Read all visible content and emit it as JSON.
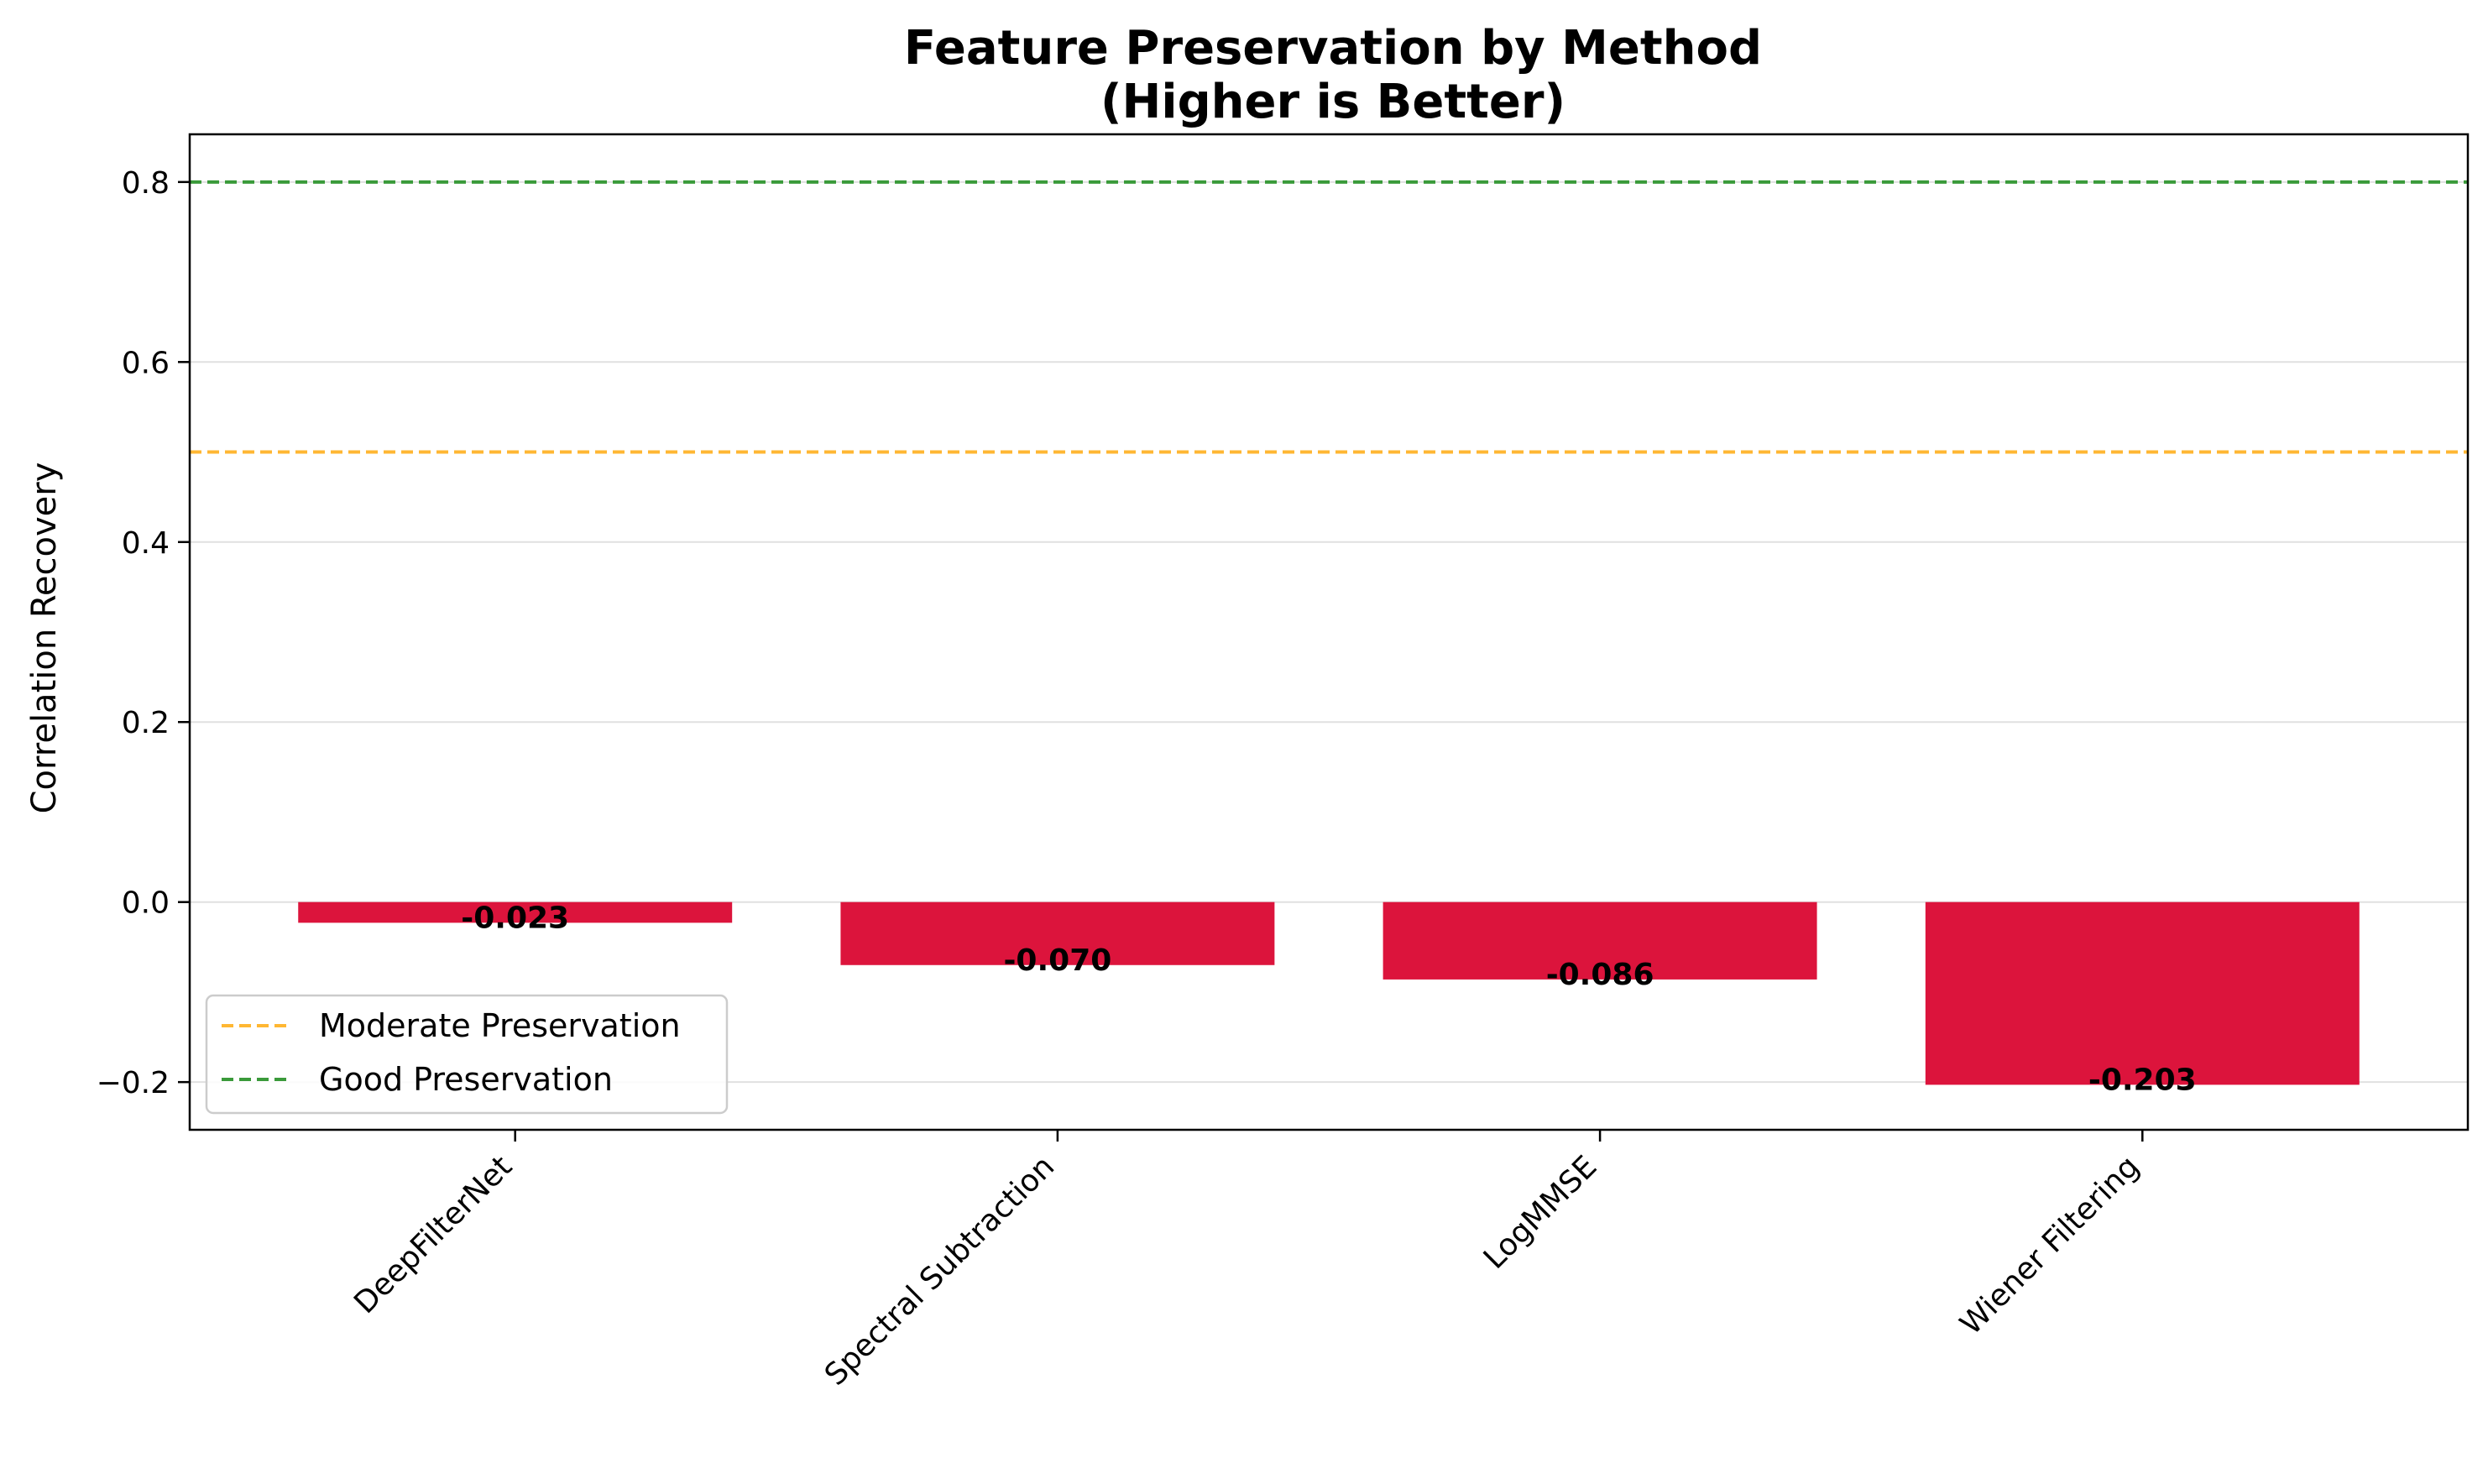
{
  "chart_data": {
    "type": "bar",
    "title": "Feature Preservation by Method",
    "subtitle": "(Higher is Better)",
    "xlabel": "",
    "ylabel": "Correlation Recovery",
    "categories": [
      "DeepFilterNet",
      "Spectral Subtraction",
      "LogMMSE",
      "Wiener Filtering"
    ],
    "values": [
      -0.023,
      -0.07,
      -0.086,
      -0.203
    ],
    "value_labels": [
      "-0.023",
      "-0.070",
      "-0.086",
      "-0.203"
    ],
    "ylim": [
      -0.253,
      0.853
    ],
    "yticks": [
      -0.2,
      0.0,
      0.2,
      0.4,
      0.6,
      0.8
    ],
    "ytick_labels": [
      "−0.2",
      "0.0",
      "0.2",
      "0.4",
      "0.6",
      "0.8"
    ],
    "bar_color": "#dc143c",
    "grid": "y",
    "reference_lines": [
      {
        "name": "Moderate Preservation",
        "value": 0.5,
        "color": "#ffb733",
        "style": "dashed"
      },
      {
        "name": "Good Preservation",
        "value": 0.8,
        "color": "#3a9a3a",
        "style": "dashed"
      }
    ],
    "legend": {
      "placement": "lower-left",
      "entries": [
        "Moderate Preservation",
        "Good Preservation"
      ]
    }
  }
}
